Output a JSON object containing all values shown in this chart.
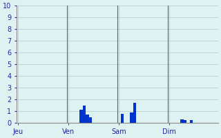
{
  "background_color": "#dff2f2",
  "grid_color": "#b0c8c8",
  "bar_color": "#0033cc",
  "ylabel_color": "#2222aa",
  "xlabel_color": "#2222aa",
  "ylim": [
    0,
    10
  ],
  "yticks": [
    0,
    1,
    2,
    3,
    4,
    5,
    6,
    7,
    8,
    9,
    10
  ],
  "day_labels": [
    "Jeu",
    "Ven",
    "Sam",
    "Dim"
  ],
  "day_positions": [
    0,
    16,
    32,
    48
  ],
  "num_bars": 64,
  "bar_values": [
    0,
    0,
    0,
    0,
    0,
    0,
    0,
    0,
    0,
    0,
    0,
    0,
    0,
    0,
    0,
    0,
    0,
    0,
    0,
    0,
    1.1,
    1.5,
    0.7,
    0.5,
    0,
    0,
    0,
    0,
    0,
    0,
    0,
    0,
    0,
    0.8,
    0,
    0,
    0.9,
    1.7,
    0,
    0,
    0,
    0,
    0,
    0,
    0,
    0,
    0,
    0,
    0,
    0,
    0,
    0,
    0.3,
    0.25,
    0,
    0.25,
    0,
    0,
    0,
    0,
    0,
    0,
    0,
    0
  ],
  "vline_positions": [
    16,
    32,
    48
  ],
  "vline_color": "#556677"
}
